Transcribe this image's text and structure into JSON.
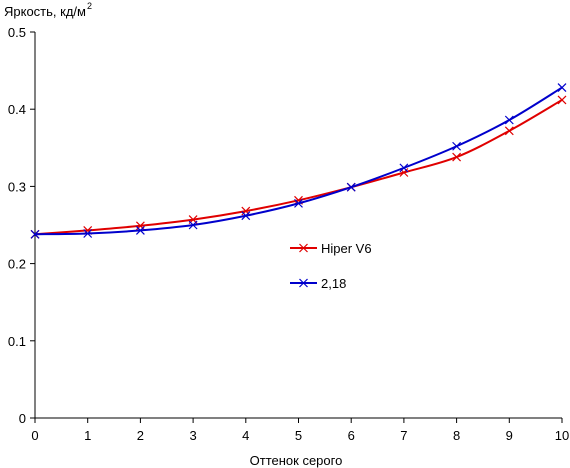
{
  "chart_data": {
    "type": "line",
    "title": "",
    "ylabel": "Яркость, кд/м",
    "ylabel_superscript": "2",
    "xlabel": "Оттенок серого",
    "xlim": [
      0,
      10
    ],
    "ylim": [
      0,
      0.5
    ],
    "x_ticks": [
      0,
      1,
      2,
      3,
      4,
      5,
      6,
      7,
      8,
      9,
      10
    ],
    "y_ticks": [
      0,
      0.1,
      0.2,
      0.3,
      0.4,
      0.5
    ],
    "y_tick_labels": [
      "0",
      "0.1",
      "0.2",
      "0.3",
      "0.4",
      "0.5"
    ],
    "grid": false,
    "legend_position": "center",
    "x": [
      0,
      1,
      2,
      3,
      4,
      5,
      6,
      7,
      8,
      9,
      10
    ],
    "series": [
      {
        "name": "Hiper V6",
        "color": "#e00000",
        "marker": "x",
        "values": [
          0.238,
          0.243,
          0.249,
          0.257,
          0.268,
          0.282,
          0.299,
          0.318,
          0.338,
          0.372,
          0.412
        ]
      },
      {
        "name": "2,18",
        "color": "#0000cc",
        "marker": "x",
        "values": [
          0.238,
          0.239,
          0.243,
          0.25,
          0.262,
          0.278,
          0.299,
          0.324,
          0.352,
          0.386,
          0.428
        ]
      }
    ]
  }
}
